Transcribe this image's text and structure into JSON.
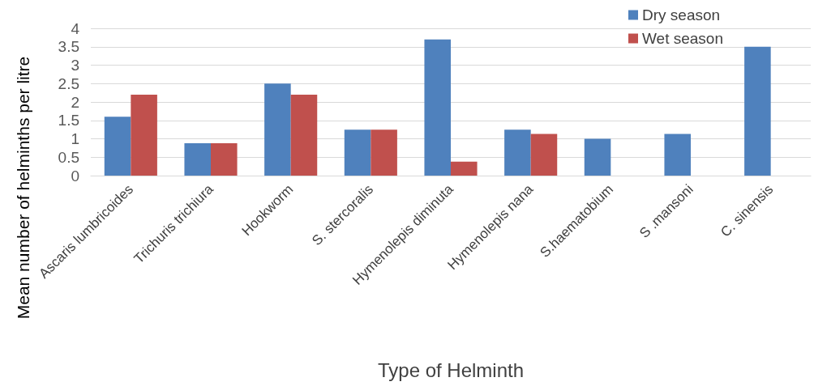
{
  "chart_data": {
    "type": "bar",
    "xlabel": "Type of Helminth",
    "ylabel": "Mean number of helminths per litre",
    "categories": [
      "Ascaris lumbricoides",
      "Trichuris trichiura",
      "Hookworm",
      "S. stercoralis",
      "Hymenolepis diminuta",
      "Hymenolepis nana",
      "S.haematobium",
      "S .mansoni",
      "C. sinensis"
    ],
    "series": [
      {
        "name": "Dry season",
        "color": "#4f81bd",
        "values": [
          1.6,
          0.88,
          2.5,
          1.25,
          3.7,
          1.25,
          1,
          1.13,
          3.5
        ]
      },
      {
        "name": "Wet season",
        "color": "#c0504d",
        "values": [
          2.2,
          0.88,
          2.2,
          1.25,
          0.38,
          1.13,
          null,
          null,
          null
        ]
      }
    ],
    "ylim": [
      0,
      4
    ],
    "yticks": [
      0,
      0.5,
      1,
      1.5,
      2,
      2.5,
      3,
      3.5,
      4
    ],
    "grid": "y",
    "legend": "top right"
  }
}
